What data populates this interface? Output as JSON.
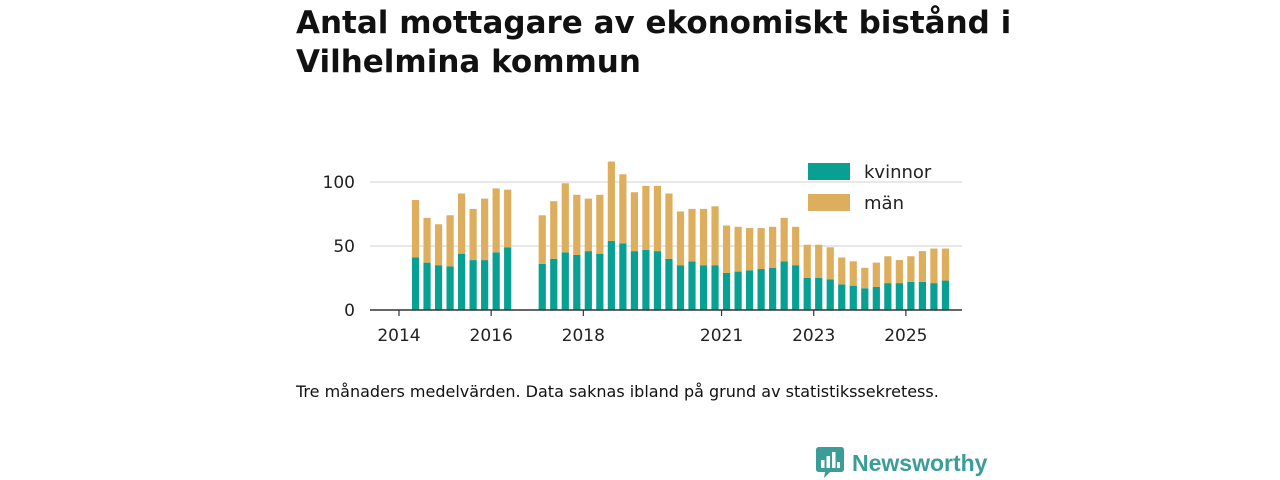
{
  "chart_data": {
    "type": "bar",
    "stacked": true,
    "title": "Antal mottagare av ekonomiskt bistånd i Vilhelmina kommun",
    "xlabel": "",
    "ylabel": "",
    "ylim": [
      0,
      120
    ],
    "yticks": [
      0,
      50,
      100
    ],
    "xtick_labels": [
      {
        "label": "2014",
        "index": 0
      },
      {
        "label": "2016",
        "index": 8
      },
      {
        "label": "2018",
        "index": 16
      },
      {
        "label": "2021",
        "index": 28
      },
      {
        "label": "2023",
        "index": 36
      },
      {
        "label": "2025",
        "index": 44
      }
    ],
    "categories": [
      "2014-03",
      "2014-06",
      "2014-09",
      "2014-12",
      "2015-03",
      "2015-06",
      "2015-09",
      "2015-12",
      "2016-03",
      "2016-06",
      "2016-09",
      "2016-12",
      "2017-03",
      "2017-06",
      "2017-09",
      "2017-12",
      "2018-03",
      "2018-06",
      "2018-09",
      "2018-12",
      "2019-03",
      "2019-06",
      "2019-09",
      "2019-12",
      "2020-03",
      "2020-06",
      "2020-09",
      "2020-12",
      "2021-03",
      "2021-06",
      "2021-09",
      "2021-12",
      "2022-03",
      "2022-06",
      "2022-09",
      "2022-12",
      "2023-03",
      "2023-06",
      "2023-09",
      "2023-12",
      "2024-03",
      "2024-06",
      "2024-09",
      "2024-12",
      "2025-03",
      "2025-06",
      "2025-09",
      "2025-12"
    ],
    "series": [
      {
        "name": "kvinnor",
        "color": "#08a092",
        "values": [
          null,
          41,
          37,
          35,
          34,
          44,
          39,
          39,
          45,
          49,
          null,
          null,
          36,
          40,
          45,
          43,
          46,
          44,
          54,
          52,
          46,
          47,
          46,
          40,
          35,
          38,
          35,
          35,
          29,
          30,
          31,
          32,
          33,
          38,
          35,
          25,
          25,
          24,
          20,
          19,
          17,
          18,
          21,
          21,
          22,
          22,
          21,
          23
        ]
      },
      {
        "name": "män",
        "color": "#dcae5d",
        "values": [
          null,
          45,
          35,
          32,
          40,
          47,
          40,
          48,
          50,
          45,
          null,
          null,
          38,
          45,
          54,
          47,
          41,
          46,
          62,
          54,
          46,
          50,
          51,
          51,
          42,
          41,
          44,
          46,
          37,
          35,
          33,
          32,
          32,
          34,
          30,
          26,
          26,
          25,
          21,
          19,
          16,
          19,
          21,
          18,
          20,
          24,
          27,
          25
        ]
      }
    ]
  },
  "footnote": "Tre månaders medelvärden. Data saknas ibland på grund av statistikssekretess.",
  "brand": {
    "name": "Newsworthy",
    "color": "#3a9d98"
  }
}
